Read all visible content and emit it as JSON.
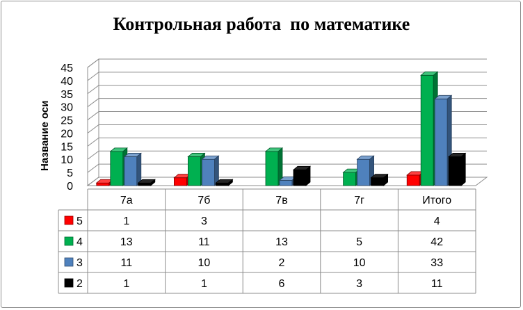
{
  "chart_data": {
    "type": "bar",
    "title": "Контрольная работа  по математике",
    "ylabel": "Название оси",
    "xlabel": "",
    "categories": [
      "7а",
      "7б",
      "7в",
      "7г",
      "Итого"
    ],
    "ylim": [
      0,
      45
    ],
    "yticks": [
      "0",
      "5",
      "10",
      "15",
      "20",
      "25",
      "30",
      "35",
      "40",
      "45"
    ],
    "grid": true,
    "legend_position": "left, in data table",
    "series": [
      {
        "name": "5",
        "color": "#ff0000",
        "values": [
          1,
          3,
          null,
          null,
          4
        ],
        "labels": [
          "1",
          "3",
          "",
          "",
          "4"
        ]
      },
      {
        "name": "4",
        "color": "#00b050",
        "values": [
          13,
          11,
          13,
          5,
          42
        ],
        "labels": [
          "13",
          "11",
          "13",
          "5",
          "42"
        ]
      },
      {
        "name": "3",
        "color": "#4f81bd",
        "values": [
          11,
          10,
          2,
          10,
          33
        ],
        "labels": [
          "11",
          "10",
          "2",
          "10",
          "33"
        ]
      },
      {
        "name": "2",
        "color": "#000000",
        "values": [
          1,
          1,
          6,
          3,
          11
        ],
        "labels": [
          "1",
          "1",
          "6",
          "3",
          "11"
        ]
      }
    ]
  }
}
